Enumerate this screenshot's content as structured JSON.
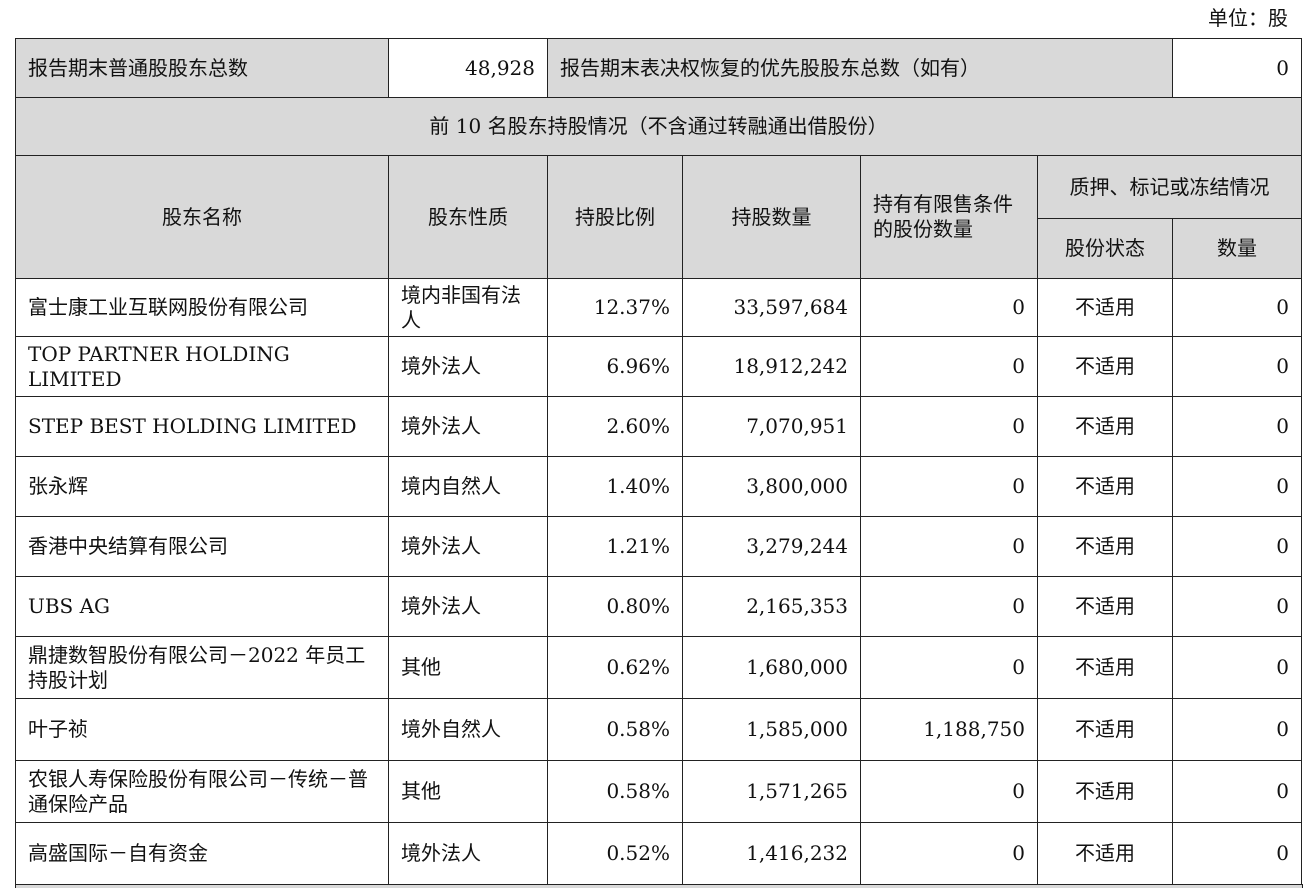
{
  "unit": "单位：股",
  "summary": {
    "label1": "报告期末普通股股东总数",
    "value1": "48,928",
    "label2": "报告期末表决权恢复的优先股股东总数（如有）",
    "value2": "0"
  },
  "section_title": "前 10 名股东持股情况（不含通过转融通出借股份）",
  "headers": {
    "name": "股东名称",
    "nature": "股东性质",
    "ratio": "持股比例",
    "shares": "持股数量",
    "restricted": "持有有限售条件的股份数量",
    "pledge": "质押、标记或冻结情况",
    "status": "股份状态",
    "quantity": "数量"
  },
  "rows": [
    [
      "富士康工业互联网股份有限公司",
      "境内非国有法人",
      "12.37%",
      "33,597,684",
      "0",
      "不适用",
      "0"
    ],
    [
      "TOP PARTNER HOLDING LIMITED",
      "境外法人",
      "6.96%",
      "18,912,242",
      "0",
      "不适用",
      "0"
    ],
    [
      "STEP BEST HOLDING LIMITED",
      "境外法人",
      "2.60%",
      "7,070,951",
      "0",
      "不适用",
      "0"
    ],
    [
      "张永辉",
      "境内自然人",
      "1.40%",
      "3,800,000",
      "0",
      "不适用",
      "0"
    ],
    [
      "香港中央结算有限公司",
      "境外法人",
      "1.21%",
      "3,279,244",
      "0",
      "不适用",
      "0"
    ],
    [
      "UBS AG",
      "境外法人",
      "0.80%",
      "2,165,353",
      "0",
      "不适用",
      "0"
    ],
    [
      "鼎捷数智股份有限公司－2022 年员工持股计划",
      "其他",
      "0.62%",
      "1,680,000",
      "0",
      "不适用",
      "0"
    ],
    [
      "叶子祯",
      "境外自然人",
      "0.58%",
      "1,585,000",
      "1,188,750",
      "不适用",
      "0"
    ],
    [
      "农银人寿保险股份有限公司－传统－普通保险产品",
      "其他",
      "0.58%",
      "1,571,265",
      "0",
      "不适用",
      "0"
    ],
    [
      "高盛国际－自有资金",
      "境外法人",
      "0.52%",
      "1,416,232",
      "0",
      "不适用",
      "0"
    ]
  ]
}
